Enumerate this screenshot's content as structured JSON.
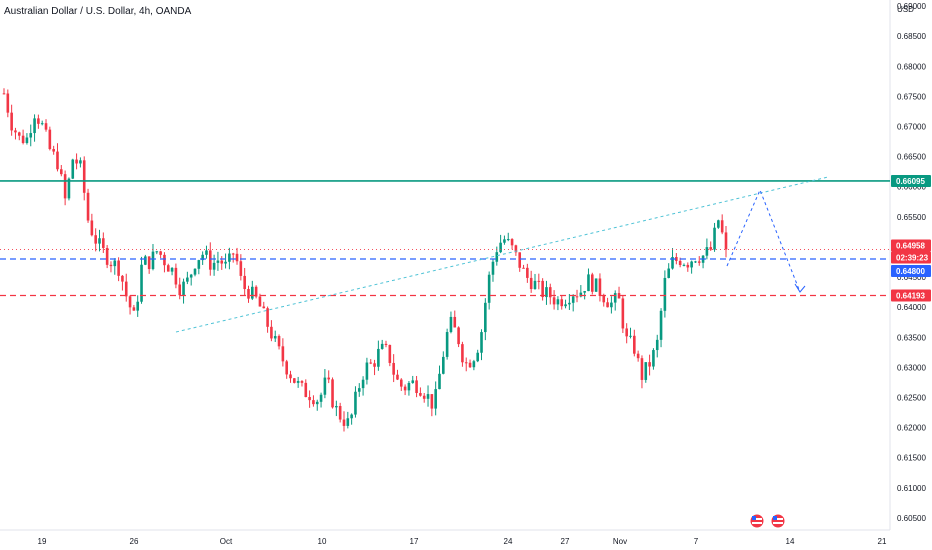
{
  "header": {
    "title": "Australian Dollar / U.S. Dollar, 4h, OANDA",
    "currency": "USD"
  },
  "colors": {
    "bull": "#089981",
    "bear": "#f23645",
    "resistance": "#089981",
    "blue_dash": "#2962ff",
    "red_dash": "#f23645",
    "trendline": "#4fc3d6",
    "projection": "#2962ff"
  },
  "price_tags": [
    {
      "text": "0.66095",
      "color": "#089981"
    },
    {
      "text": "0.64958",
      "color": "#f23645"
    },
    {
      "text": "02:39:23",
      "color": "#f23645"
    },
    {
      "text": "0.64800",
      "color": "#2962ff"
    },
    {
      "text": "0.64193",
      "color": "#f23645"
    }
  ],
  "events": [
    {
      "icon": "us-flag-icon"
    },
    {
      "icon": "us-flag-icon"
    }
  ],
  "chart_data": {
    "type": "candlestick",
    "title": "Australian Dollar / U.S. Dollar, 4h, OANDA",
    "y_unit": "USD",
    "y_ticks": [
      "0.69000",
      "0.68500",
      "0.68000",
      "0.67500",
      "0.67000",
      "0.66500",
      "0.66000",
      "0.65500",
      "0.65000",
      "0.64500",
      "0.64000",
      "0.63500",
      "0.63000",
      "0.62500",
      "0.62000",
      "0.61500",
      "0.61000",
      "0.60500"
    ],
    "x_ticks": [
      "19",
      "26",
      "Oct",
      "10",
      "17",
      "24",
      "27",
      "Nov",
      "7",
      "14",
      "21"
    ],
    "ylim": [
      0.603,
      0.691
    ],
    "levels": [
      {
        "name": "resistance",
        "value": 0.66095,
        "style": "solid"
      },
      {
        "name": "blue",
        "value": 0.648,
        "style": "dashed"
      },
      {
        "name": "red",
        "value": 0.64193,
        "style": "dashed"
      }
    ],
    "last_price": 0.64958,
    "path_close": [
      0.6755,
      0.6705,
      0.668,
      0.668,
      0.6725,
      0.67,
      0.666,
      0.664,
      0.6575,
      0.665,
      0.663,
      0.654,
      0.651,
      0.649,
      0.6475,
      0.6465,
      0.6415,
      0.638,
      0.6475,
      0.6475,
      0.6495,
      0.6475,
      0.646,
      0.643,
      0.6445,
      0.648,
      0.649,
      0.647,
      0.648,
      0.6465,
      0.6495,
      0.6435,
      0.6425,
      0.641,
      0.638,
      0.635,
      0.632,
      0.6295,
      0.6275,
      0.626,
      0.6255,
      0.6245,
      0.628,
      0.6235,
      0.6215,
      0.6205,
      0.626,
      0.63,
      0.6305,
      0.633,
      0.6325,
      0.628,
      0.6265,
      0.6275,
      0.627,
      0.6255,
      0.6235,
      0.631,
      0.6375,
      0.6355,
      0.6305,
      0.6315,
      0.6345,
      0.644,
      0.6495,
      0.6515,
      0.65,
      0.6475,
      0.645,
      0.644,
      0.6425,
      0.642,
      0.641,
      0.6415,
      0.6425,
      0.6425,
      0.6445,
      0.6435,
      0.642,
      0.6405,
      0.6415,
      0.6345,
      0.6335,
      0.6285,
      0.6305,
      0.6335,
      0.644,
      0.6475,
      0.648,
      0.6475,
      0.6485,
      0.6485,
      0.6495,
      0.6545,
      0.64958
    ]
  }
}
